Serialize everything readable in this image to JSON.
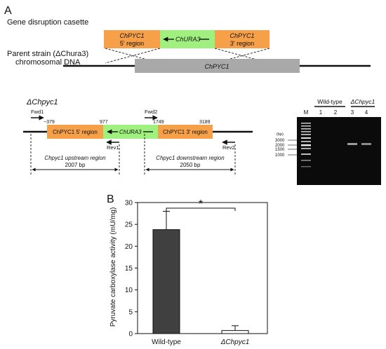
{
  "panel_a": {
    "label": "A",
    "cassette_title": "Gene disruption casette",
    "parent_line1": "Parent strain (ΔChura3)",
    "parent_line2": "chromosomal DNA",
    "cassette": {
      "left_name": "ChPYC1",
      "left_sub": "5' region",
      "marker": "ChURA3",
      "right_name": "ChPYC1",
      "right_sub": "3' region"
    },
    "chromosome_gene": "ChPYC1",
    "mutant": {
      "title": "ΔChpyc1",
      "fwd1": "Fwd1",
      "fwd2": "Fwd2",
      "rev1": "Rev1",
      "rev2": "Rev2",
      "pos_a": "−379",
      "pos_b": "977",
      "pos_c": "1749",
      "pos_d": "3189",
      "box_left": "ChPYC1 5' region",
      "box_mid": "ChURA3",
      "box_right": "ChPYC1 3' region",
      "up_line1": "Chpyc1 upstream region",
      "up_line2": "2007 bp",
      "down_line1": "Chpyc1 downstream region",
      "down_line2": "2050 bp"
    },
    "gel": {
      "group_wt": "Wild-type",
      "group_mut": "ΔChpyc1",
      "marker_lane": "M",
      "lanes": [
        "1",
        "2",
        "3",
        "4"
      ],
      "bp_label": "(bp)",
      "sizes": [
        "3000",
        "2000",
        "1500",
        "1000"
      ]
    }
  },
  "panel_b": {
    "label": "B",
    "significance": "*",
    "chart_data": {
      "type": "bar",
      "categories": [
        "Wild-type",
        "ΔChpyc1"
      ],
      "values": [
        23.8,
        0.7
      ],
      "errors": [
        4.2,
        1.1
      ],
      "ylabel": "Pyruvate carboxylase activity (mU/mg)",
      "ylim": [
        0,
        30
      ],
      "yticks": [
        0,
        5,
        10,
        15,
        20,
        25,
        30
      ],
      "bar_colors": [
        "#404040",
        "#ffffff"
      ]
    }
  },
  "colors": {
    "orange": "#f7a04a",
    "green": "#9ff07f",
    "gray": "#a9a9a9"
  }
}
